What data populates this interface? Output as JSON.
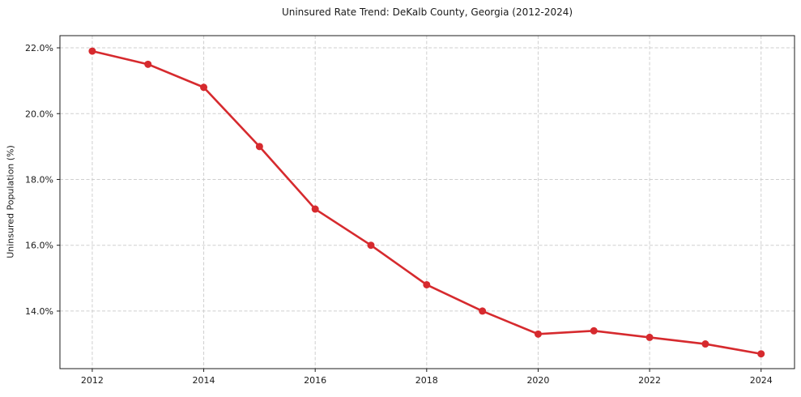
{
  "chart_data": {
    "type": "line",
    "title": "Uninsured Rate Trend: DeKalb County, Georgia (2012-2024)",
    "xlabel": "",
    "ylabel": "Uninsured Population (%)",
    "x": [
      2012,
      2013,
      2014,
      2015,
      2016,
      2017,
      2018,
      2019,
      2020,
      2021,
      2022,
      2023,
      2024
    ],
    "values": [
      21.9,
      21.5,
      20.8,
      19.0,
      17.1,
      16.0,
      14.8,
      14.0,
      13.3,
      13.4,
      13.2,
      13.0,
      12.7
    ],
    "unit": "%",
    "xticks": {
      "values": [
        2012,
        2014,
        2016,
        2018,
        2020,
        2022,
        2024
      ],
      "labels": [
        "2012",
        "2014",
        "2016",
        "2018",
        "2020",
        "2022",
        "2024"
      ]
    },
    "yticks": {
      "values": [
        14.0,
        16.0,
        18.0,
        20.0,
        22.0
      ],
      "labels": [
        "14.0%",
        "16.0%",
        "18.0%",
        "20.0%",
        "22.0%"
      ]
    },
    "xlim": [
      2011.42,
      2024.6
    ],
    "ylim": [
      12.25,
      22.37
    ],
    "grid": true,
    "grid_style": "dashed",
    "legend": false,
    "marker": "circle",
    "colors": {
      "line": "#d62a2e",
      "marker": "#d62a2e",
      "grid": "#cfcfcf",
      "axis": "#1c1c1c",
      "background": "#ffffff"
    }
  }
}
